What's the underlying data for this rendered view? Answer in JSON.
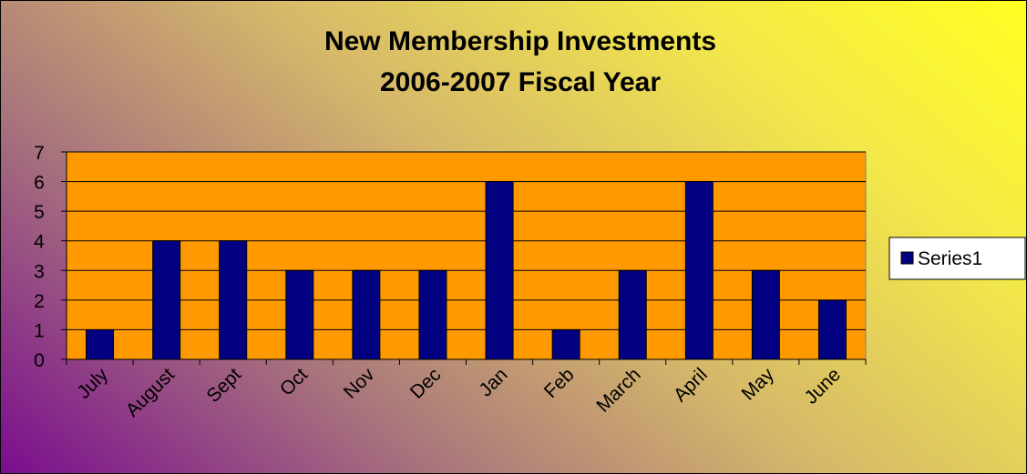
{
  "chart_data": {
    "type": "bar",
    "title": [
      "New Membership Investments",
      "2006-2007 Fiscal Year"
    ],
    "categories": [
      "July",
      "August",
      "Sept",
      "Oct",
      "Nov",
      "Dec",
      "Jan",
      "Feb",
      "March",
      "April",
      "May",
      "June"
    ],
    "series": [
      {
        "name": "Series1",
        "values": [
          1,
          4,
          4,
          3,
          3,
          3,
          6,
          1,
          3,
          6,
          3,
          2
        ]
      }
    ],
    "ylim": [
      0,
      7
    ],
    "yticks": [
      "0",
      "1",
      "2",
      "3",
      "4",
      "5",
      "6",
      "7"
    ],
    "grid": true,
    "legend_position": "right",
    "colors": {
      "plot_background": "#FF9900",
      "bar_fill": "#000080",
      "gridline": "#000000"
    }
  }
}
